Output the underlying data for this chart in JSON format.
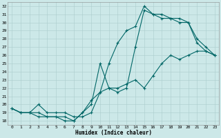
{
  "xlabel": "Humidex (Indice chaleur)",
  "background_color": "#cce8e8",
  "line_color": "#006666",
  "grid_color": "#aacccc",
  "xlim": [
    -0.5,
    23.5
  ],
  "ylim": [
    17.5,
    32.5
  ],
  "yticks": [
    18,
    19,
    20,
    21,
    22,
    23,
    24,
    25,
    26,
    27,
    28,
    29,
    30,
    31,
    32
  ],
  "xticks": [
    0,
    1,
    2,
    3,
    4,
    5,
    6,
    7,
    8,
    9,
    10,
    11,
    12,
    13,
    14,
    15,
    16,
    17,
    18,
    19,
    20,
    21,
    22,
    23
  ],
  "line1_x": [
    0,
    1,
    2,
    3,
    4,
    5,
    6,
    7,
    8,
    9,
    10,
    11,
    12,
    13,
    14,
    15,
    16,
    17,
    18,
    19,
    20,
    21,
    22,
    23
  ],
  "line1_y": [
    19.5,
    19.0,
    19.0,
    19.0,
    18.5,
    18.5,
    18.0,
    18.0,
    19.0,
    20.5,
    21.5,
    25.0,
    27.5,
    29.0,
    29.5,
    32.0,
    31.0,
    31.0,
    30.5,
    30.5,
    30.0,
    27.5,
    26.5,
    26.0
  ],
  "line2_x": [
    0,
    1,
    2,
    3,
    4,
    5,
    6,
    7,
    8,
    9,
    10,
    11,
    12,
    13,
    14,
    15,
    16,
    17,
    18,
    19,
    20,
    21,
    22,
    23
  ],
  "line2_y": [
    19.5,
    19.0,
    19.0,
    18.5,
    18.5,
    18.5,
    18.5,
    18.0,
    19.0,
    20.0,
    25.0,
    22.0,
    21.5,
    22.0,
    27.0,
    31.5,
    31.0,
    30.5,
    30.5,
    30.0,
    30.0,
    28.0,
    27.0,
    26.0
  ],
  "line3_x": [
    0,
    1,
    2,
    3,
    4,
    5,
    6,
    7,
    8,
    9,
    10,
    11,
    12,
    13,
    14,
    15,
    16,
    17,
    18,
    19,
    20,
    21,
    22,
    23
  ],
  "line3_y": [
    19.5,
    19.0,
    19.0,
    20.0,
    19.0,
    19.0,
    19.0,
    18.5,
    18.5,
    19.0,
    21.5,
    22.0,
    22.0,
    22.5,
    23.0,
    22.0,
    23.5,
    25.0,
    26.0,
    25.5,
    26.0,
    26.5,
    26.5,
    26.0
  ],
  "marker": "+",
  "markersize": 3,
  "markeredgewidth": 0.8,
  "linewidth": 0.8
}
